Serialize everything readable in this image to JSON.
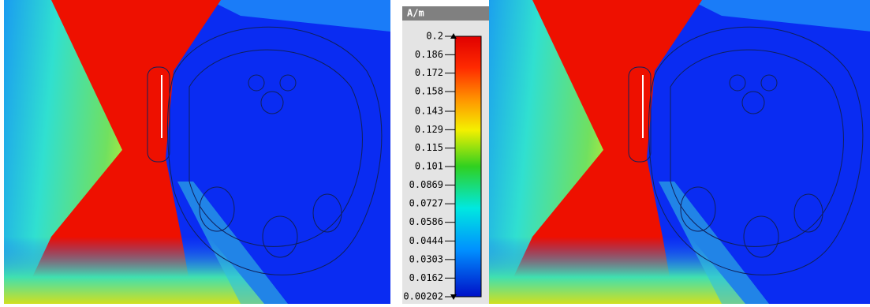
{
  "colorbar": {
    "unit": "A/m",
    "range": [
      0.00202,
      0.2
    ],
    "ticks": [
      0.2,
      0.186,
      0.172,
      0.158,
      0.143,
      0.129,
      0.115,
      0.101,
      0.0869,
      0.0727,
      0.0586,
      0.0444,
      0.0303,
      0.0162,
      0.00202
    ]
  }
}
